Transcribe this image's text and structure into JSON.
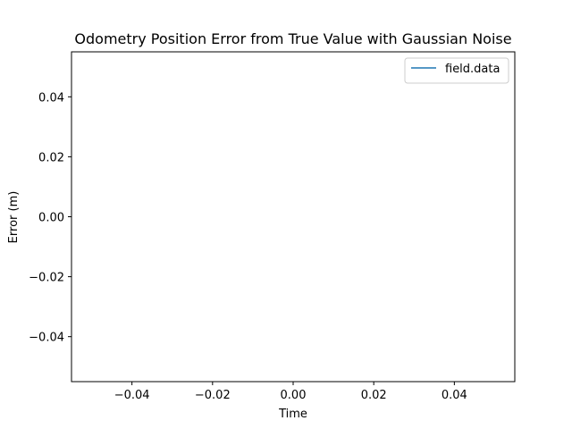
{
  "chart_data": {
    "type": "line",
    "title": "Odometry Position Error from True Value with Gaussian Noise",
    "xlabel": "Time",
    "ylabel": "Error (m)",
    "xlim": [
      -0.055,
      0.055
    ],
    "ylim": [
      -0.055,
      0.055
    ],
    "x_ticks": [
      -0.04,
      -0.02,
      0.0,
      0.02,
      0.04
    ],
    "y_ticks": [
      -0.04,
      -0.02,
      0.0,
      0.02,
      0.04
    ],
    "x_tick_labels": [
      "−0.04",
      "−0.02",
      "0.00",
      "0.02",
      "0.04"
    ],
    "y_tick_labels": [
      "−0.04",
      "−0.02",
      "0.00",
      "0.02",
      "0.04"
    ],
    "grid": false,
    "legend_position": "top-right",
    "series": [
      {
        "name": "field.data",
        "color": "#1f77b4",
        "x": [],
        "y": []
      }
    ]
  }
}
